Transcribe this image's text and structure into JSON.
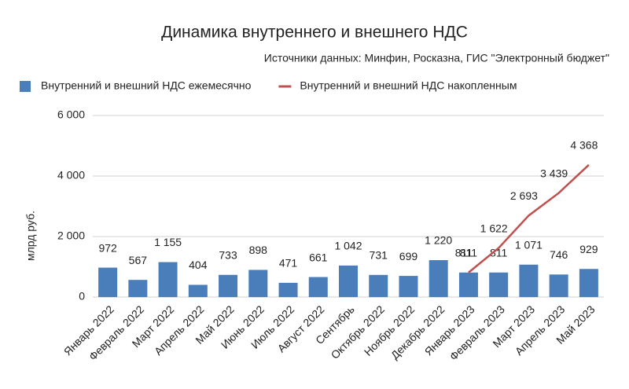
{
  "chart_data": {
    "type": "bar",
    "title": "Динамика внутреннего и внешнего НДС",
    "subtitle": "Источники данных: Минфин, Росказна, ГИС \"Электронный бюджет\"",
    "ylabel": "млрд руб.",
    "categories": [
      "Январь 2022",
      "Февраль 2022",
      "Март 2022",
      "Апрель 2022",
      "Май 2022",
      "Июнь 2022",
      "Июль 2022",
      "Август 2022",
      "Сентябрь",
      "Октябрь 2022",
      "Ноябрь 2022",
      "Декабрь 2022",
      "Январь 2023",
      "Февраль 2023",
      "Март 2023",
      "Апрель 2023",
      "Май 2023"
    ],
    "series": [
      {
        "name": "Внутренний и внешний НДС ежемесячно",
        "type": "bar",
        "color": "#4a7ebb",
        "values": [
          972,
          567,
          1155,
          404,
          733,
          898,
          471,
          661,
          1042,
          731,
          699,
          1220,
          811,
          811,
          1071,
          746,
          929
        ],
        "value_labels": [
          "972",
          "567",
          "1 155",
          "404",
          "733",
          "898",
          "471",
          "661",
          "1 042",
          "731",
          "699",
          "1 220",
          "811",
          "811",
          "1 071",
          "746",
          "929"
        ]
      },
      {
        "name": "Внутренний и внешний НДС накопленным",
        "type": "line",
        "color": "#c0504d",
        "values": [
          null,
          null,
          null,
          null,
          null,
          null,
          null,
          null,
          null,
          null,
          null,
          null,
          811,
          1622,
          2693,
          3439,
          4368
        ],
        "value_labels": [
          null,
          null,
          null,
          null,
          null,
          null,
          null,
          null,
          null,
          null,
          null,
          null,
          "811",
          "1 622",
          "2 693",
          "3 439",
          "4 368"
        ]
      }
    ],
    "ylim": [
      0,
      6000
    ],
    "yticks": [
      0,
      {
        "value": 2000,
        "label": "2 000"
      },
      {
        "value": 4000,
        "label": "4 000"
      },
      {
        "value": 6000,
        "label": "6 000"
      }
    ],
    "grid": true,
    "legend": "top"
  }
}
